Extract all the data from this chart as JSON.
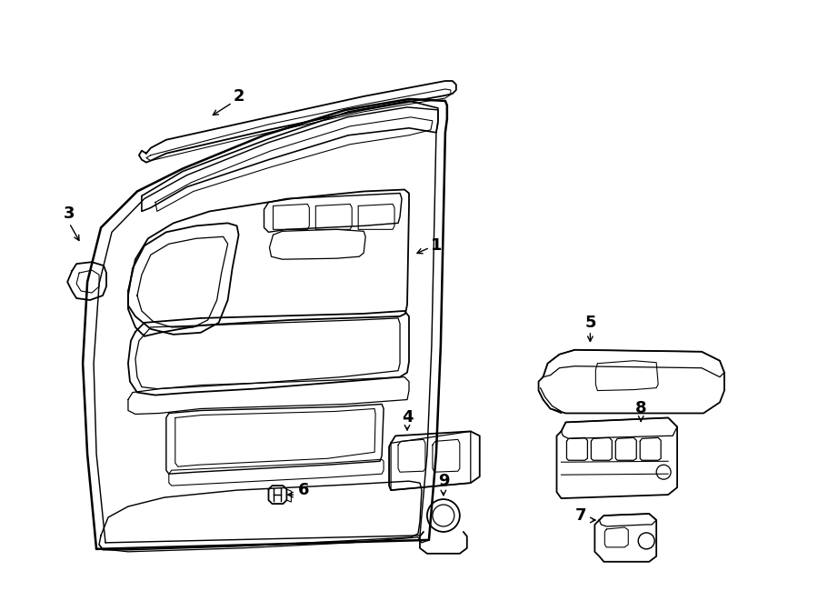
{
  "background_color": "#ffffff",
  "line_color": "#000000",
  "line_width": 1.3,
  "fig_width": 9.0,
  "fig_height": 6.61,
  "dpi": 100
}
